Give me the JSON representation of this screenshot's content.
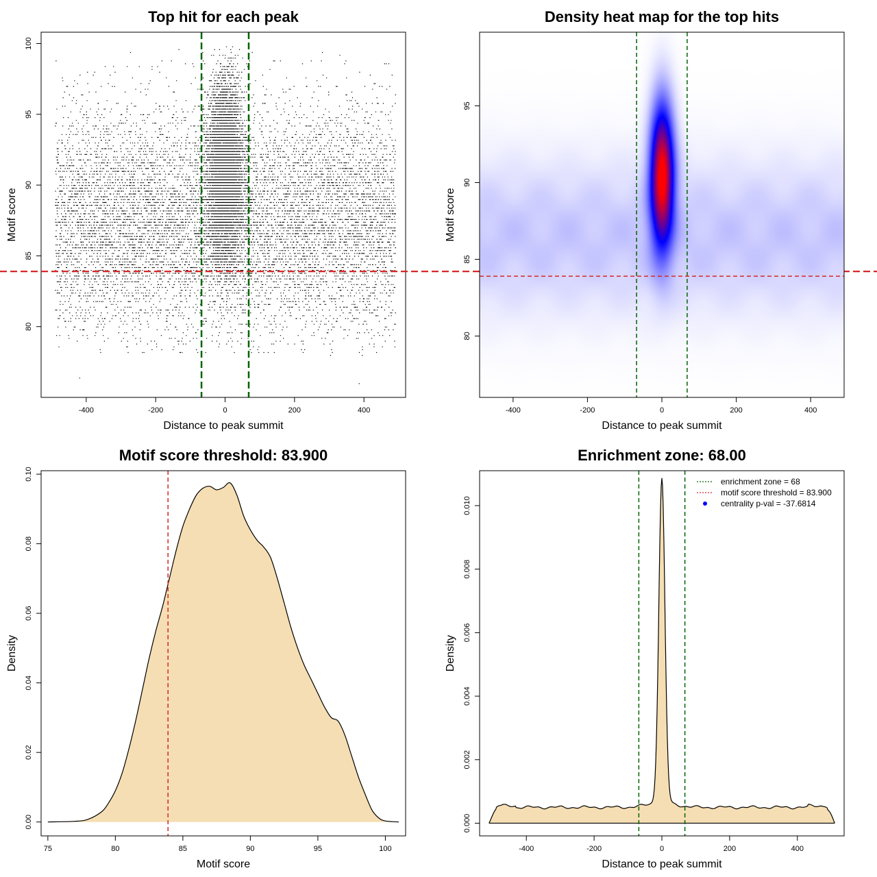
{
  "chart_data": [
    {
      "id": "scatter",
      "type": "scatter",
      "title": "Top hit for each peak",
      "xlabel": "Distance to peak summit",
      "ylabel": "Motif score",
      "xlim": [
        -530,
        520
      ],
      "ylim": [
        75,
        100.8
      ],
      "xticks": [
        -400,
        -200,
        0,
        200,
        400
      ],
      "yticks": [
        80,
        85,
        90,
        95,
        100
      ],
      "vlines": [
        -68,
        68
      ],
      "vline_color": "#006400",
      "hline": 83.9,
      "hline_color": "#d62728",
      "point_color": "#000000",
      "background_points": {
        "x_range": [
          -490,
          490
        ],
        "mean": 87.5,
        "sd": 4.0,
        "min": 78,
        "max": 99.8,
        "count": 9500
      },
      "central_points": {
        "x_sd": 25,
        "mean": 91,
        "sd": 3.2,
        "min": 82,
        "max": 99.8,
        "count": 7000
      },
      "outliers": [
        {
          "x": -420,
          "y": 76.4
        },
        {
          "x": 385,
          "y": 76.0
        }
      ]
    },
    {
      "id": "heatmap",
      "type": "heatmap",
      "title": "Density heat map for the top hits",
      "xlabel": "Distance to peak summit",
      "ylabel": "Motif score",
      "xlim": [
        -490,
        490
      ],
      "ylim": [
        76,
        99.8
      ],
      "xticks": [
        -400,
        -200,
        0,
        200,
        400
      ],
      "yticks": [
        80,
        85,
        90,
        95
      ],
      "vlines": [
        -68,
        68
      ],
      "vline_color": "#006400",
      "hline": 83.9,
      "hline_color": "#d62728",
      "colors": [
        "#ffffff",
        "#0000ff",
        "#ff0000"
      ],
      "central_peak": {
        "x_sd": 22,
        "y_center": 90.5,
        "y_sd": 3.2
      },
      "background_band": {
        "y_center": 86.5,
        "y_sd": 3.5
      }
    },
    {
      "id": "score_density",
      "type": "area",
      "title": "Motif score threshold: 83.900",
      "xlabel": "Motif score",
      "ylabel": "Density",
      "xlim": [
        74.5,
        101.5
      ],
      "ylim": [
        -0.004,
        0.101
      ],
      "xticks": [
        75,
        80,
        85,
        90,
        95,
        100
      ],
      "yticks": [
        0.0,
        0.02,
        0.04,
        0.06,
        0.08,
        0.1
      ],
      "ytick_labels": [
        "0.00",
        "0.02",
        "0.04",
        "0.06",
        "0.08",
        "0.10"
      ],
      "fill_color": "#f5deb3",
      "vline": 83.9,
      "vline_color": "#d62728",
      "x": [
        75,
        77,
        78,
        79,
        79.5,
        80,
        80.5,
        81,
        81.5,
        82,
        82.5,
        83,
        83.5,
        84,
        84.5,
        85,
        85.5,
        86,
        86.5,
        87,
        87.5,
        88,
        88.5,
        89,
        89.5,
        90,
        90.5,
        91,
        91.5,
        92,
        92.5,
        93,
        93.5,
        94,
        94.5,
        95,
        95.5,
        96,
        96.5,
        97,
        97.5,
        98,
        98.5,
        99,
        99.5,
        100,
        101
      ],
      "y": [
        0,
        0.0002,
        0.0008,
        0.003,
        0.0055,
        0.009,
        0.014,
        0.021,
        0.029,
        0.038,
        0.047,
        0.055,
        0.062,
        0.07,
        0.078,
        0.085,
        0.09,
        0.094,
        0.096,
        0.0965,
        0.0955,
        0.0962,
        0.0975,
        0.094,
        0.088,
        0.084,
        0.081,
        0.079,
        0.076,
        0.07,
        0.063,
        0.056,
        0.05,
        0.045,
        0.041,
        0.037,
        0.033,
        0.03,
        0.029,
        0.025,
        0.019,
        0.013,
        0.008,
        0.0035,
        0.0012,
        0.0003,
        0
      ]
    },
    {
      "id": "distance_density",
      "type": "area",
      "title": "Enrichment zone: 68.00",
      "xlabel": "Distance to peak summit",
      "ylabel": "Density",
      "xlim": [
        -538,
        538
      ],
      "ylim": [
        -0.0004,
        0.0111
      ],
      "xticks": [
        -400,
        -200,
        0,
        200,
        400
      ],
      "yticks": [
        0.0,
        0.002,
        0.004,
        0.006,
        0.008,
        0.01
      ],
      "ytick_labels": [
        "0.000",
        "0.002",
        "0.004",
        "0.006",
        "0.008",
        "0.010"
      ],
      "fill_color": "#f5deb3",
      "vlines": [
        -68,
        68
      ],
      "vline_color": "#006400",
      "baseline_density": 0.0005,
      "peak_density": 0.0107,
      "peak_sd": 9,
      "x_range": [
        -510,
        510
      ],
      "legend": [
        {
          "label": "enrichment zone = 68",
          "color": "#006400",
          "style": "dotted-line"
        },
        {
          "label": "motif score threshold = 83.900",
          "color": "#d62728",
          "style": "dotted-line"
        },
        {
          "label": "centrality p-val = -37.6814",
          "color": "#0000ff",
          "style": "point"
        }
      ]
    }
  ]
}
